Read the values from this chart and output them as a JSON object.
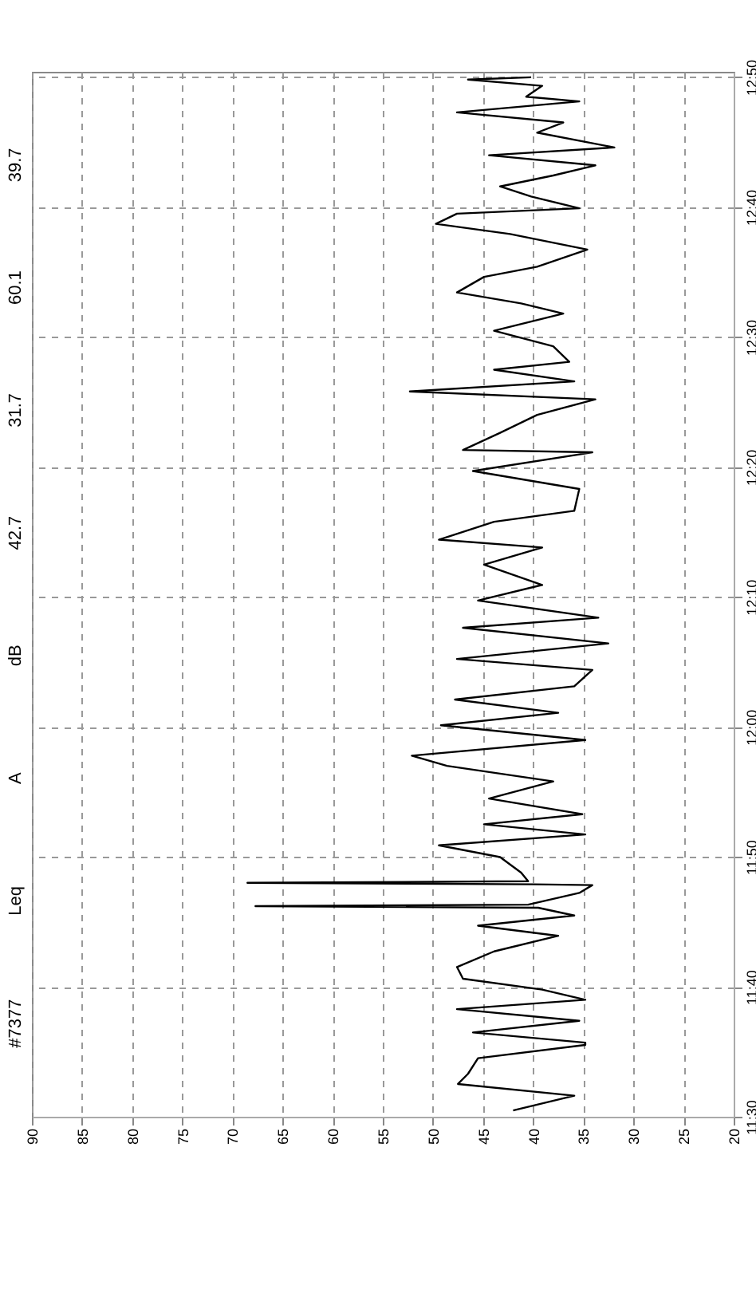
{
  "chart_data": {
    "type": "line",
    "orientation": "horizontal",
    "x": [
      11.508,
      11.527,
      11.542,
      11.555,
      11.575,
      11.592,
      11.595,
      11.608,
      11.623,
      11.638,
      11.65,
      11.663,
      11.677,
      11.692,
      11.712,
      11.732,
      11.745,
      11.758,
      11.768,
      11.77,
      11.772,
      11.787,
      11.797,
      11.798,
      11.8,
      11.802,
      11.813,
      11.833,
      11.848,
      11.862,
      11.875,
      11.888,
      11.908,
      11.93,
      11.95,
      11.963,
      11.983,
      12.002,
      12.018,
      12.035,
      12.052,
      12.073,
      12.087,
      12.107,
      12.127,
      12.14,
      12.162,
      12.182,
      12.208,
      12.23,
      12.24,
      12.263,
      12.277,
      12.305,
      12.328,
      12.352,
      12.355,
      12.377,
      12.4,
      12.42,
      12.43,
      12.443,
      12.458,
      12.468,
      12.488,
      12.508,
      12.53,
      12.543,
      12.557,
      12.577,
      12.59,
      12.612,
      12.632,
      12.645,
      12.658,
      12.665,
      12.68,
      12.693,
      12.707,
      12.72,
      12.733,
      12.743,
      12.762,
      12.775,
      12.788,
      12.802,
      12.808,
      12.822,
      12.83,
      12.833
    ],
    "series": [
      {
        "color": "#000000",
        "values": [
          42.0,
          35.9,
          47.5,
          46.5,
          45.5,
          34.8,
          34.8,
          46.0,
          35.4,
          47.6,
          34.8,
          39.1,
          47.0,
          47.6,
          43.9,
          37.5,
          45.5,
          35.9,
          39.5,
          67.7,
          40.5,
          35.4,
          34.1,
          40.0,
          68.5,
          40.5,
          41.2,
          43.3,
          49.4,
          34.8,
          44.9,
          35.1,
          44.4,
          38.0,
          48.6,
          52.1,
          34.8,
          49.2,
          37.5,
          47.8,
          35.9,
          34.1,
          47.6,
          32.5,
          47.0,
          33.5,
          45.5,
          39.1,
          44.9,
          39.1,
          49.4,
          43.9,
          35.9,
          35.4,
          46.0,
          34.1,
          47.0,
          43.3,
          39.6,
          33.8,
          52.3,
          35.9,
          43.9,
          36.4,
          38.0,
          43.9,
          37.0,
          41.2,
          47.6,
          44.9,
          39.6,
          34.6,
          42.3,
          49.7,
          47.6,
          35.4,
          40.2,
          43.3,
          38.0,
          33.8,
          44.4,
          31.9,
          39.6,
          37.0,
          47.6,
          35.4,
          40.7,
          39.1,
          46.5,
          40.2
        ]
      }
    ],
    "xlim": [
      90,
      20
    ],
    "xticks": [
      90,
      85,
      80,
      75,
      70,
      65,
      60,
      55,
      50,
      45,
      40,
      35,
      30,
      25,
      20
    ],
    "ylim": [
      11.5,
      12.84
    ],
    "yticks": [
      {
        "value": 11.5,
        "label": "11:30"
      },
      {
        "value": 11.6667,
        "label": "11:40"
      },
      {
        "value": 11.8333,
        "label": "11:50"
      },
      {
        "value": 12.0,
        "label": "12:00"
      },
      {
        "value": 12.1667,
        "label": "12:10"
      },
      {
        "value": 12.3333,
        "label": "12:20"
      },
      {
        "value": 12.5,
        "label": "12:30"
      },
      {
        "value": 12.6667,
        "label": "12:40"
      },
      {
        "value": 12.8333,
        "label": "12:50"
      }
    ],
    "grid": true,
    "line_style": "solid",
    "marker": "none",
    "annotations": [
      "#7377",
      "Leq",
      "A",
      "dB",
      "42.7",
      "31.7",
      "60.1",
      "39.7"
    ]
  }
}
